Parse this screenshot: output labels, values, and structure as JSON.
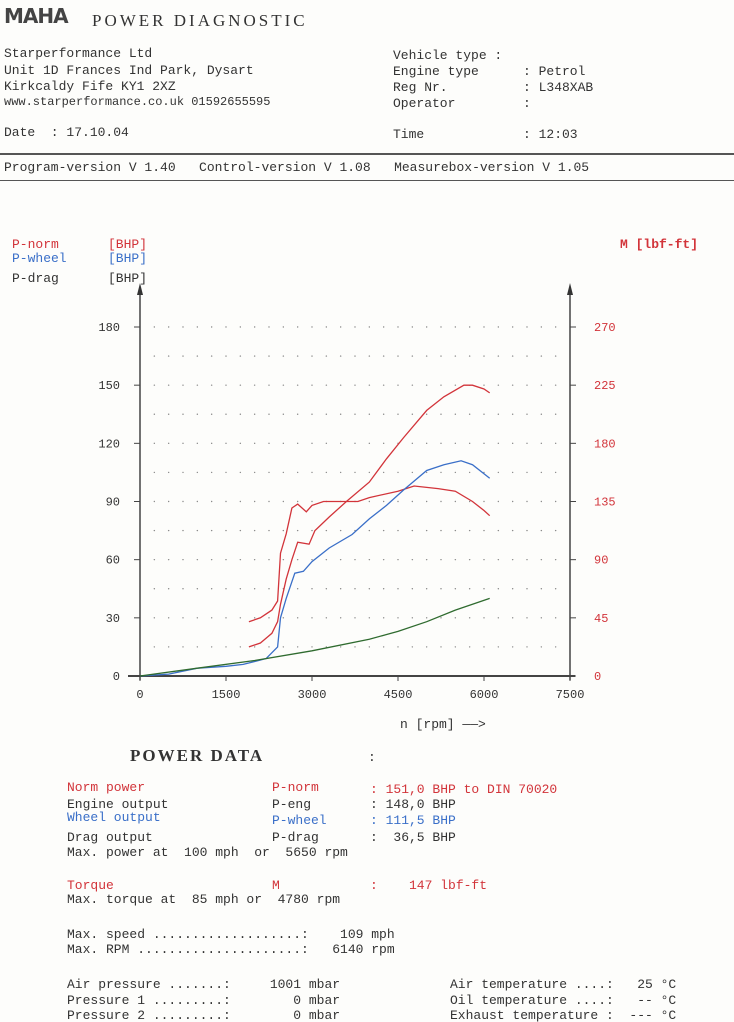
{
  "header": {
    "logo": "MAHA",
    "title": "POWER DIAGNOSTIC",
    "company": [
      "Starperformance Ltd",
      "Unit 1D Frances Ind Park, Dysart",
      "Kirkcaldy Fife KY1 2XZ",
      "www.starperformance.co.uk 01592655595"
    ],
    "vehicle_type_label": "Vehicle type :",
    "engine_type_label": "Engine type",
    "engine_type_value": ": Petrol",
    "reg_label": "Reg Nr.",
    "reg_value": ": L348XAB",
    "operator_label": "Operator",
    "operator_value": ":",
    "date": "Date  : 17.10.04",
    "time_label": "Time",
    "time_value": ": 12:03",
    "versions": "Program-version V 1.40   Control-version V 1.08   Measurebox-version V 1.05"
  },
  "chart_data": {
    "type": "line",
    "xlabel": "n [rpm] ——>",
    "xlim": [
      0,
      7500
    ],
    "xticks": [
      "0",
      "1500",
      "3000",
      "4500",
      "6000",
      "7500"
    ],
    "ylim_left": [
      0,
      180
    ],
    "yticks_left": [
      "0",
      "30",
      "60",
      "90",
      "120",
      "150",
      "180"
    ],
    "ylim_right": [
      0,
      270
    ],
    "yticks_right": [
      "0",
      "45",
      "90",
      "135",
      "180",
      "225",
      "270"
    ],
    "legend_left": [
      {
        "name": "P-norm",
        "unit": "[BHP]",
        "color": "#d2343a"
      },
      {
        "name": "P-wheel",
        "unit": "[BHP]",
        "color": "#3a6fc8"
      },
      {
        "name": "P-drag",
        "unit": "[BHP]",
        "color": "#333333"
      }
    ],
    "legend_right": {
      "name": "M [lbf-ft]",
      "color": "#d2343a"
    },
    "grid": "dotted",
    "series": [
      {
        "name": "P-norm",
        "axis": "left",
        "color": "#d2343a",
        "x": [
          1900,
          2100,
          2300,
          2400,
          2450,
          2550,
          2650,
          2750,
          2950,
          3050,
          3300,
          3600,
          4000,
          4300,
          4600,
          5000,
          5300,
          5650,
          5800,
          6000,
          6100
        ],
        "y": [
          15,
          17,
          22,
          28,
          37,
          50,
          60,
          69,
          68,
          75,
          82,
          90,
          100,
          112,
          123,
          137,
          144,
          150,
          150,
          148,
          146
        ]
      },
      {
        "name": "M",
        "axis": "right",
        "color": "#d2343a",
        "x": [
          1900,
          2100,
          2300,
          2400,
          2450,
          2550,
          2650,
          2750,
          2900,
          3000,
          3200,
          3800,
          4000,
          4500,
          4780,
          5200,
          5500,
          5800,
          6000,
          6100
        ],
        "y": [
          42,
          45,
          51,
          58,
          95,
          110,
          130,
          133,
          127,
          132,
          135,
          135,
          138,
          143,
          147,
          145,
          143,
          135,
          128,
          124
        ]
      },
      {
        "name": "P-wheel",
        "axis": "left",
        "color": "#3a6fc8",
        "x": [
          0,
          500,
          1000,
          1500,
          1800,
          2200,
          2400,
          2450,
          2550,
          2700,
          2850,
          3000,
          3300,
          3700,
          4000,
          4300,
          4600,
          5000,
          5300,
          5600,
          5800,
          6100
        ],
        "y": [
          0,
          1,
          4,
          5,
          6,
          9,
          15,
          30,
          40,
          53,
          54,
          59,
          66,
          73,
          81,
          88,
          96,
          106,
          109,
          111,
          109,
          102
        ]
      },
      {
        "name": "P-drag",
        "axis": "left",
        "color": "#2f6b2f",
        "x": [
          0,
          1000,
          2000,
          3000,
          4000,
          4500,
          5000,
          5500,
          6100
        ],
        "y": [
          0,
          4,
          8,
          13,
          19,
          23,
          28,
          34,
          40
        ]
      }
    ]
  },
  "power_data": {
    "title": "POWER DATA",
    "colon": ":",
    "rows": [
      {
        "label": "Norm power",
        "sym": "P-norm",
        "val": ": 151,0 BHP to DIN 70020"
      },
      {
        "label": "Engine output",
        "sym": "P-eng",
        "val": ": 148,0 BHP"
      },
      {
        "label": "Wheel output",
        "sym": "P-wheel",
        "val": ": 111,5 BHP"
      },
      {
        "label": "Drag output",
        "sym": "P-drag",
        "val": ":  36,5 BHP"
      }
    ],
    "max_power": "Max. power at  100 mph  or  5650 rpm",
    "torque_label": "Torque",
    "torque_sym": "M",
    "torque_val": ":    147 lbf-ft",
    "max_torque": "Max. torque at  85 mph or  4780 rpm",
    "max_speed": "Max. speed ...................:    109 mph",
    "max_rpm": "Max. RPM .....................:   6140 rpm",
    "env": [
      {
        "l": "Air pressure .......:     1001 mbar",
        "r": "Air temperature ....:   25 °C"
      },
      {
        "l": "Pressure 1 .........:        0 mbar",
        "r": "Oil temperature ....:   -- °C"
      },
      {
        "l": "Pressure 2 .........:        0 mbar",
        "r": "Exhaust temperature :  --- °C"
      }
    ]
  }
}
